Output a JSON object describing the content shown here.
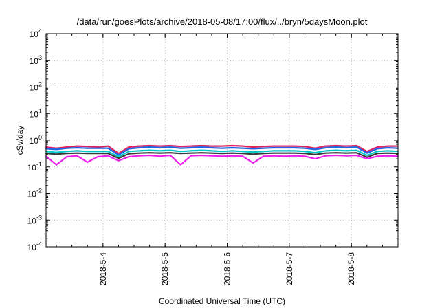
{
  "chart_data": {
    "type": "line",
    "title": "/data/run/goesPlots/archive/2018-05-08/17:00/flux/../bryn/5daysMoon.plot",
    "xlabel": "Coordinated Universal Time (UTC)",
    "ylabel": "cSv/day",
    "yscale": "log",
    "ylim": [
      0.0001,
      10000
    ],
    "xlim": [
      "2018-05-03 02:00",
      "2018-05-08 18:00"
    ],
    "grid": true,
    "legend": "none",
    "y_ticks": [
      {
        "value": 0.0001,
        "base": "10",
        "exp": "-4"
      },
      {
        "value": 0.001,
        "base": "10",
        "exp": "-3"
      },
      {
        "value": 0.01,
        "base": "10",
        "exp": "-2"
      },
      {
        "value": 0.1,
        "base": "10",
        "exp": "-1"
      },
      {
        "value": 1,
        "base": "10",
        "exp": "0"
      },
      {
        "value": 10,
        "base": "10",
        "exp": "1"
      },
      {
        "value": 100,
        "base": "10",
        "exp": "2"
      },
      {
        "value": 1000,
        "base": "10",
        "exp": "3"
      },
      {
        "value": 10000,
        "base": "10",
        "exp": "4"
      }
    ],
    "x_ticks": [
      "2018-5-4",
      "2018-5-5",
      "2018-5-6",
      "2018-5-7",
      "2018-5-8"
    ],
    "x_tick_times": [
      "2018-05-04 00:00",
      "2018-05-05 00:00",
      "2018-05-06 00:00",
      "2018-05-07 00:00",
      "2018-05-08 00:00"
    ],
    "x": [
      "2018-05-03 02:00",
      "2018-05-03 06:00",
      "2018-05-03 10:00",
      "2018-05-03 14:00",
      "2018-05-03 18:00",
      "2018-05-03 22:00",
      "2018-05-04 02:00",
      "2018-05-04 06:00",
      "2018-05-04 10:00",
      "2018-05-04 14:00",
      "2018-05-04 18:00",
      "2018-05-04 22:00",
      "2018-05-05 02:00",
      "2018-05-05 06:00",
      "2018-05-05 10:00",
      "2018-05-05 14:00",
      "2018-05-05 18:00",
      "2018-05-05 22:00",
      "2018-05-06 02:00",
      "2018-05-06 06:00",
      "2018-05-06 10:00",
      "2018-05-06 14:00",
      "2018-05-06 18:00",
      "2018-05-06 22:00",
      "2018-05-07 02:00",
      "2018-05-07 06:00",
      "2018-05-07 10:00",
      "2018-05-07 14:00",
      "2018-05-07 18:00",
      "2018-05-07 22:00",
      "2018-05-08 02:00",
      "2018-05-08 06:00",
      "2018-05-08 10:00",
      "2018-05-08 14:00",
      "2018-05-08 18:00"
    ],
    "series": [
      {
        "color": "#e0245e",
        "values": [
          0.55,
          0.5,
          0.55,
          0.6,
          0.58,
          0.55,
          0.6,
          0.32,
          0.55,
          0.6,
          0.62,
          0.6,
          0.62,
          0.58,
          0.6,
          0.62,
          0.6,
          0.6,
          0.62,
          0.6,
          0.55,
          0.58,
          0.6,
          0.6,
          0.6,
          0.58,
          0.5,
          0.6,
          0.62,
          0.6,
          0.62,
          0.38,
          0.55,
          0.6,
          0.6
        ]
      },
      {
        "color": "#1e64e6",
        "values": [
          0.48,
          0.45,
          0.5,
          0.52,
          0.5,
          0.5,
          0.5,
          0.28,
          0.48,
          0.52,
          0.55,
          0.52,
          0.55,
          0.5,
          0.52,
          0.55,
          0.52,
          0.5,
          0.52,
          0.5,
          0.48,
          0.5,
          0.52,
          0.52,
          0.52,
          0.5,
          0.45,
          0.52,
          0.55,
          0.52,
          0.55,
          0.33,
          0.48,
          0.52,
          0.5
        ]
      },
      {
        "color": "#00c8c8",
        "values": [
          0.38,
          0.35,
          0.38,
          0.4,
          0.38,
          0.38,
          0.38,
          0.24,
          0.38,
          0.4,
          0.42,
          0.4,
          0.42,
          0.38,
          0.4,
          0.42,
          0.4,
          0.38,
          0.4,
          0.38,
          0.36,
          0.38,
          0.4,
          0.4,
          0.4,
          0.38,
          0.34,
          0.4,
          0.42,
          0.4,
          0.42,
          0.27,
          0.38,
          0.4,
          0.38
        ]
      },
      {
        "color": "#3a3a3a",
        "values": [
          0.32,
          0.3,
          0.32,
          0.33,
          0.32,
          0.32,
          0.32,
          0.21,
          0.31,
          0.33,
          0.34,
          0.33,
          0.34,
          0.32,
          0.33,
          0.34,
          0.33,
          0.32,
          0.33,
          0.32,
          0.3,
          0.32,
          0.33,
          0.33,
          0.33,
          0.32,
          0.29,
          0.33,
          0.34,
          0.33,
          0.34,
          0.23,
          0.32,
          0.33,
          0.32
        ]
      },
      {
        "color": "#ee20ee",
        "values": [
          0.25,
          0.12,
          0.24,
          0.26,
          0.15,
          0.24,
          0.26,
          0.17,
          0.24,
          0.26,
          0.27,
          0.25,
          0.27,
          0.12,
          0.26,
          0.27,
          0.26,
          0.25,
          0.26,
          0.25,
          0.14,
          0.25,
          0.26,
          0.25,
          0.26,
          0.25,
          0.2,
          0.26,
          0.27,
          0.26,
          0.27,
          0.2,
          0.25,
          0.26,
          0.25
        ]
      }
    ]
  }
}
